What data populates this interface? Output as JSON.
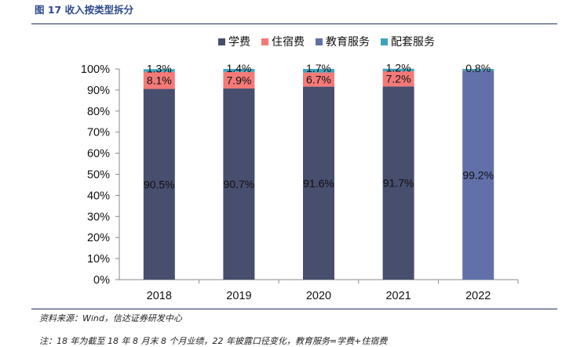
{
  "figure_title": "图 17  收入按类型拆分",
  "source_note": "资料来源：Wind，信达证券研发中心",
  "footnote": "注：18 年为截至 18 年 8 月末 8 个月业绩，22 年披露口径变化，教育服务=学费+住宿费",
  "chart_data": {
    "type": "bar",
    "stacked": true,
    "categories": [
      "2018",
      "2019",
      "2020",
      "2021",
      "2022"
    ],
    "ylim": [
      0,
      100
    ],
    "yticks": [
      "0%",
      "10%",
      "20%",
      "30%",
      "40%",
      "50%",
      "60%",
      "70%",
      "80%",
      "90%",
      "100%"
    ],
    "legend_position": "top",
    "series": [
      {
        "name": "学费",
        "color": "#474e6e",
        "values": [
          90.5,
          90.7,
          91.6,
          91.7,
          null
        ],
        "labels": [
          "90.5%",
          "90.7%",
          "91.6%",
          "91.7%",
          ""
        ]
      },
      {
        "name": "住宿费",
        "color": "#f47a78",
        "values": [
          8.1,
          7.9,
          6.7,
          7.2,
          null
        ],
        "labels": [
          "8.1%",
          "7.9%",
          "6.7%",
          "7.2%",
          ""
        ]
      },
      {
        "name": "教育服务",
        "color": "#6170a8",
        "values": [
          null,
          null,
          null,
          null,
          99.2
        ],
        "labels": [
          "",
          "",
          "",
          "",
          "99.2%"
        ]
      },
      {
        "name": "配套服务",
        "color": "#3fa3bd",
        "values": [
          1.3,
          1.4,
          1.7,
          1.2,
          0.8
        ],
        "labels": [
          "1.3%",
          "1.4%",
          "1.7%",
          "1.2%",
          "0.8%"
        ]
      }
    ]
  }
}
